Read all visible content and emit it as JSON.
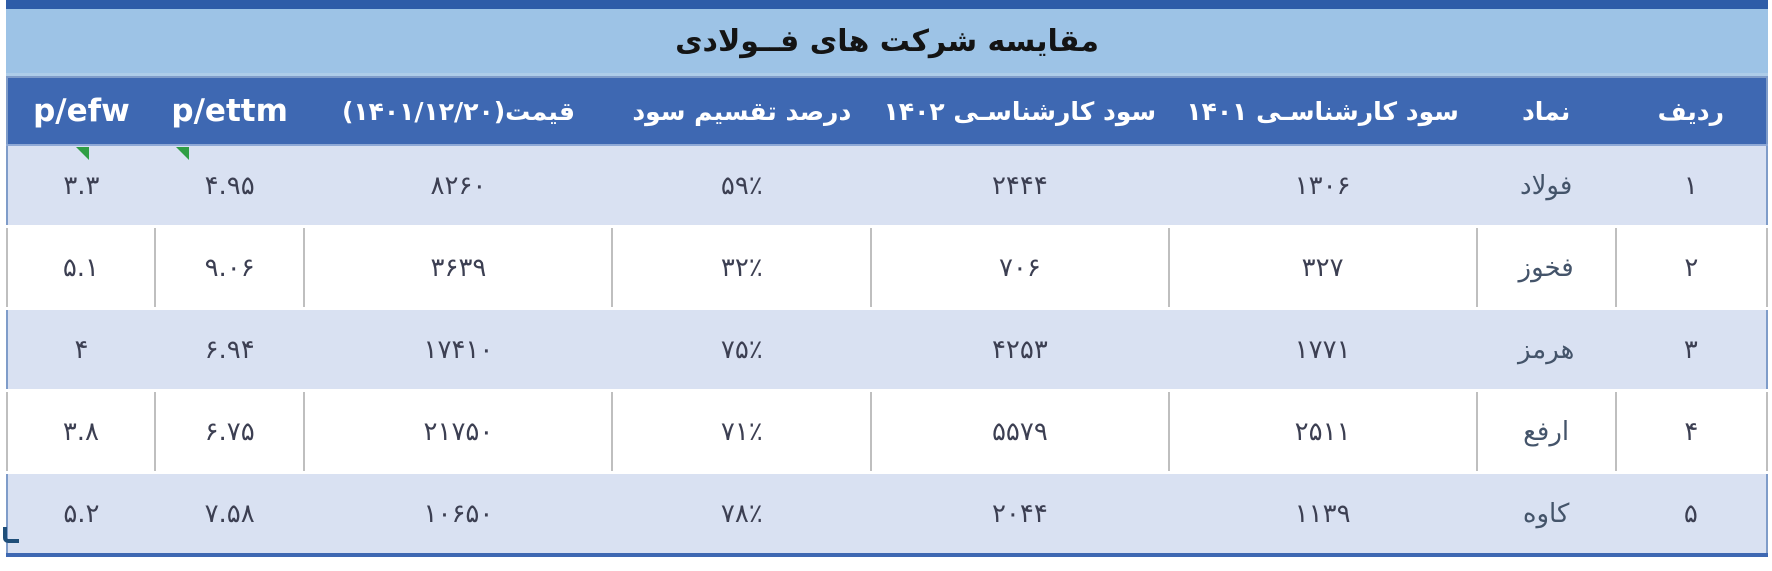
{
  "title": "مقایسه شرکت های فــولادی",
  "table": {
    "columns": [
      {
        "key": "radif",
        "label": "ردیف",
        "latin": false,
        "width": "8.6%"
      },
      {
        "key": "namad",
        "label": "نماد",
        "latin": false,
        "width": "7.9%"
      },
      {
        "key": "sood1401",
        "label": "سود کارشناسـی ۱۴۰۱",
        "latin": false,
        "width": "17.5%"
      },
      {
        "key": "sood1402",
        "label": "سود کارشناسـی ۱۴۰۲",
        "latin": false,
        "width": "16.9%"
      },
      {
        "key": "dividend",
        "label": "درصد تقسیم سود",
        "latin": false,
        "width": "14.7%"
      },
      {
        "key": "price",
        "label": "قیمت(۱۴۰۱/۱۲/۲۰)",
        "latin": false,
        "width": "17.5%"
      },
      {
        "key": "pettm",
        "label": "p/ettm",
        "latin": true,
        "width": "8.5%"
      },
      {
        "key": "pefw",
        "label": "p/efw",
        "latin": true,
        "width": "8.4%"
      }
    ],
    "rows": [
      {
        "radif": "۱",
        "namad": "فولاد",
        "sood1401": "۱۳۰۶",
        "sood1402": "۲۴۴۴",
        "dividend": "۵۹٪",
        "price": "۸۲۶۰",
        "pettm": "۴.۹۵",
        "pefw": "۳.۳"
      },
      {
        "radif": "۲",
        "namad": "فخوز",
        "sood1401": "۳۲۷",
        "sood1402": "۷۰۶",
        "dividend": "۳۲٪",
        "price": "۳۶۳۹",
        "pettm": "۹.۰۶",
        "pefw": "۵.۱"
      },
      {
        "radif": "۳",
        "namad": "هرمز",
        "sood1401": "۱۷۷۱",
        "sood1402": "۴۲۵۳",
        "dividend": "۷۵٪",
        "price": "۱۷۴۱۰",
        "pettm": "۶.۹۴",
        "pefw": "۴"
      },
      {
        "radif": "۴",
        "namad": "ارفع",
        "sood1401": "۲۵۱۱",
        "sood1402": "۵۵۷۹",
        "dividend": "۷۱٪",
        "price": "۲۱۷۵۰",
        "pettm": "۶.۷۵",
        "pefw": "۳.۸"
      },
      {
        "radif": "۵",
        "namad": "کاوه",
        "sood1401": "۱۱۳۹",
        "sood1402": "۲۰۴۴",
        "dividend": "۷۸٪",
        "price": "۱۰۶۵۰",
        "pettm": "۷.۵۸",
        "pefw": "۵.۲"
      }
    ],
    "row1_flag_columns": [
      "pettm",
      "pefw"
    ]
  },
  "colors": {
    "top_strip": "#2e5ca8",
    "title_bg": "#9dc3e6",
    "header_bg": "#3e68b2",
    "header_text": "#ffffff",
    "band_row_bg": "#d9e1f2",
    "band_border": "#8fa9d6",
    "plain_cell_border": "#bfbfbf",
    "data_text": "#3c3f52",
    "flag_green": "#2f9e44",
    "selection_handle": "#1f4e79"
  }
}
